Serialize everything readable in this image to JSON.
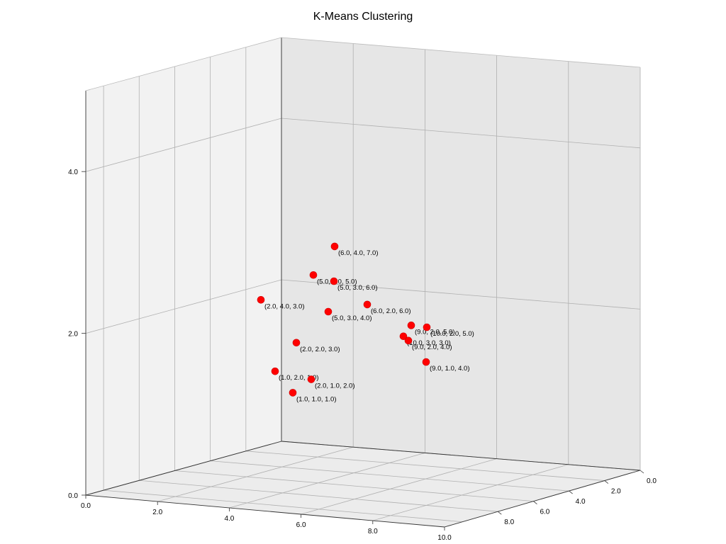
{
  "chart_data": {
    "type": "scatter",
    "projection": "3d",
    "title": "K-Means Clustering",
    "xlabel": "",
    "ylabel": "",
    "zlabel": "",
    "xlim": [
      0,
      10
    ],
    "ylim": [
      0,
      10
    ],
    "zlim": [
      0,
      5
    ],
    "x_ticks": [
      "0.0",
      "2.0",
      "4.0",
      "6.0",
      "8.0",
      "10.0"
    ],
    "y_ticks": [
      "0.0",
      "2.0",
      "4.0",
      "6.0",
      "8.0"
    ],
    "z_ticks": [
      "0.0",
      "2.0",
      "4.0"
    ],
    "grid": true,
    "marker_color": "#ff0000",
    "points": [
      {
        "x": 1,
        "y": 2,
        "z": 1,
        "label": "(1.0, 2.0, 1.0)"
      },
      {
        "x": 2,
        "y": 4,
        "z": 3,
        "label": "(2.0, 4.0, 3.0)"
      },
      {
        "x": 5,
        "y": 4,
        "z": 5,
        "label": "(5.0, 4.0, 5.0)"
      },
      {
        "x": 6,
        "y": 4,
        "z": 7,
        "label": "(6.0, 4.0, 7.0)"
      },
      {
        "x": 5,
        "y": 3,
        "z": 4,
        "label": "(5.0, 3.0, 4.0)"
      },
      {
        "x": 5,
        "y": 3,
        "z": 6,
        "label": "(5.0, 3.0, 6.0)"
      },
      {
        "x": 10,
        "y": 3,
        "z": 3,
        "label": "(10.0, 3.0, 3.0)"
      },
      {
        "x": 2,
        "y": 2,
        "z": 3,
        "label": "(2.0, 2.0, 3.0)"
      },
      {
        "x": 6,
        "y": 2,
        "z": 6,
        "label": "(6.0, 2.0, 6.0)"
      },
      {
        "x": 9,
        "y": 2,
        "z": 4,
        "label": "(9.0, 2.0, 4.0)"
      },
      {
        "x": 9,
        "y": 2,
        "z": 5,
        "label": "(9.0, 2.0, 5.0)"
      },
      {
        "x": 10,
        "y": 2,
        "z": 5,
        "label": "(10.0, 2.0, 5.0)"
      },
      {
        "x": 1,
        "y": 1,
        "z": 1,
        "label": "(1.0, 1.0, 1.0)"
      },
      {
        "x": 2,
        "y": 1,
        "z": 2,
        "label": "(2.0, 1.0, 2.0)"
      },
      {
        "x": 9,
        "y": 1,
        "z": 4,
        "label": "(9.0, 1.0, 4.0)"
      }
    ]
  }
}
